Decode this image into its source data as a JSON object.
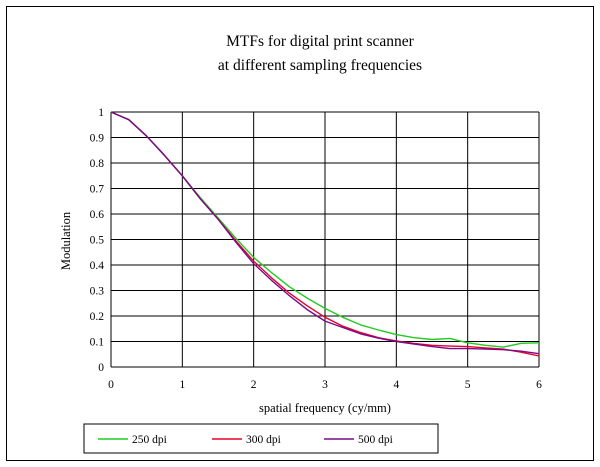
{
  "chart_data": {
    "type": "line",
    "title": [
      "MTFs for digital print scanner",
      "at  different sampling frequencies"
    ],
    "xlabel": "spatial frequency (cy/mm)",
    "ylabel": "Modulation",
    "xlim": [
      0,
      6
    ],
    "ylim": [
      0,
      1
    ],
    "xticks": [
      "0",
      "1",
      "2",
      "3",
      "4",
      "5",
      "6"
    ],
    "yticks": [
      "0",
      "0.1",
      "0.2",
      "0.3",
      "0.4",
      "0.5",
      "0.6",
      "0.7",
      "0.8",
      "0.9",
      "1"
    ],
    "grid": "vertical and horizontal",
    "legend_position": "bottom",
    "series": [
      {
        "name": "250 dpi",
        "color": "#22cc22",
        "points": [
          [
            0,
            1.0
          ],
          [
            0.25,
            0.97
          ],
          [
            0.5,
            0.905
          ],
          [
            0.75,
            0.83
          ],
          [
            1,
            0.75
          ],
          [
            1.25,
            0.665
          ],
          [
            1.5,
            0.585
          ],
          [
            1.75,
            0.505
          ],
          [
            2,
            0.43
          ],
          [
            2.25,
            0.37
          ],
          [
            2.5,
            0.315
          ],
          [
            2.75,
            0.27
          ],
          [
            3,
            0.23
          ],
          [
            3.25,
            0.195
          ],
          [
            3.5,
            0.165
          ],
          [
            3.75,
            0.145
          ],
          [
            4,
            0.127
          ],
          [
            4.25,
            0.115
          ],
          [
            4.5,
            0.108
          ],
          [
            4.75,
            0.112
          ],
          [
            5,
            0.095
          ],
          [
            5.25,
            0.085
          ],
          [
            5.5,
            0.078
          ],
          [
            5.75,
            0.093
          ],
          [
            6,
            0.095
          ]
        ]
      },
      {
        "name": "300 dpi",
        "color": "#e8002a",
        "points": [
          [
            0,
            1.0
          ],
          [
            0.25,
            0.97
          ],
          [
            0.5,
            0.905
          ],
          [
            0.75,
            0.83
          ],
          [
            1,
            0.75
          ],
          [
            1.25,
            0.66
          ],
          [
            1.5,
            0.58
          ],
          [
            1.75,
            0.495
          ],
          [
            2,
            0.415
          ],
          [
            2.25,
            0.35
          ],
          [
            2.5,
            0.29
          ],
          [
            2.75,
            0.24
          ],
          [
            3,
            0.195
          ],
          [
            3.25,
            0.16
          ],
          [
            3.5,
            0.135
          ],
          [
            3.75,
            0.115
          ],
          [
            4,
            0.102
          ],
          [
            4.25,
            0.092
          ],
          [
            4.5,
            0.085
          ],
          [
            4.75,
            0.082
          ],
          [
            5,
            0.08
          ],
          [
            5.25,
            0.075
          ],
          [
            5.5,
            0.07
          ],
          [
            5.75,
            0.058
          ],
          [
            6,
            0.043
          ]
        ]
      },
      {
        "name": "500 dpi",
        "color": "#7a0a8a",
        "points": [
          [
            0,
            1.0
          ],
          [
            0.25,
            0.97
          ],
          [
            0.5,
            0.905
          ],
          [
            0.75,
            0.83
          ],
          [
            1,
            0.75
          ],
          [
            1.25,
            0.66
          ],
          [
            1.5,
            0.58
          ],
          [
            1.75,
            0.49
          ],
          [
            2,
            0.405
          ],
          [
            2.25,
            0.34
          ],
          [
            2.5,
            0.28
          ],
          [
            2.75,
            0.225
          ],
          [
            3,
            0.18
          ],
          [
            3.25,
            0.155
          ],
          [
            3.5,
            0.13
          ],
          [
            3.75,
            0.113
          ],
          [
            4,
            0.1
          ],
          [
            4.25,
            0.09
          ],
          [
            4.5,
            0.08
          ],
          [
            4.75,
            0.072
          ],
          [
            5,
            0.072
          ],
          [
            5.25,
            0.07
          ],
          [
            5.5,
            0.068
          ],
          [
            5.75,
            0.062
          ],
          [
            6,
            0.052
          ]
        ]
      }
    ]
  }
}
